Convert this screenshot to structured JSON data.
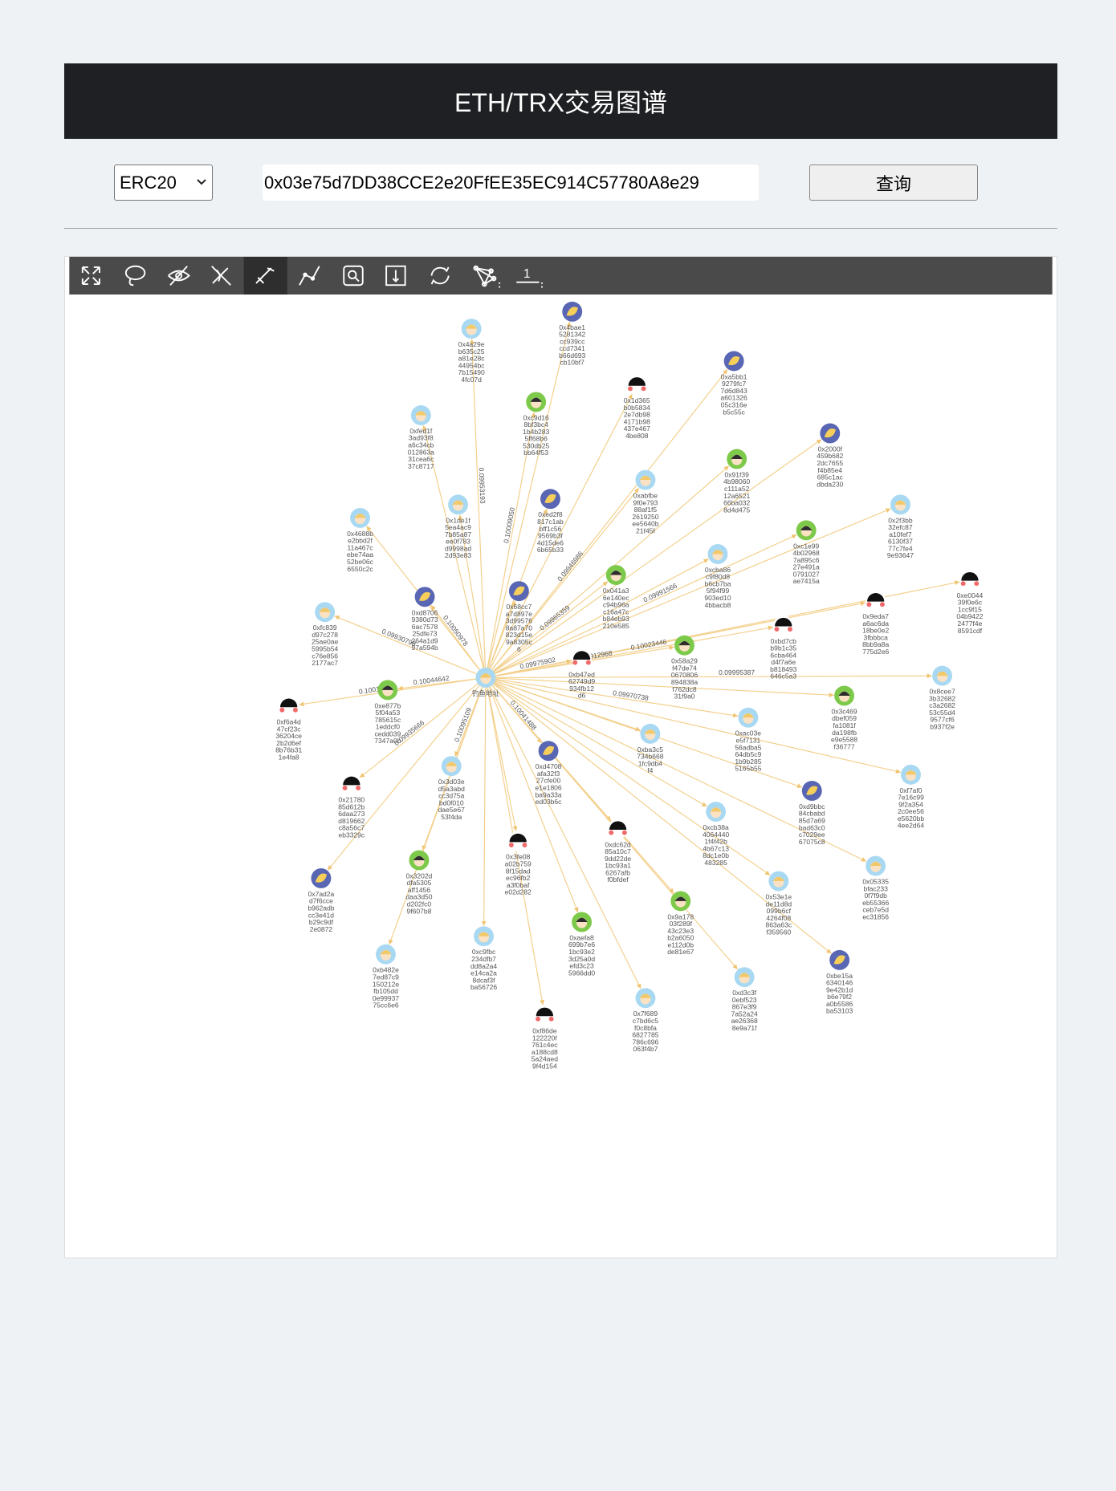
{
  "header": {
    "title": "ETH/TRX交易图谱"
  },
  "controls": {
    "select": "ERC20",
    "address": "0x03e75d7DD38CCE2e20FfEE35EC914C57780A8e29",
    "button": "查询"
  },
  "toolbar": {
    "page": "1"
  },
  "graph": {
    "center": "钓鱼地址",
    "nodes": [
      {
        "label": "0x4bae15281342cc939ccccd7341b66d693cb10bf7"
      },
      {
        "label": "0x4a29eb635c25a81e28c44954bc7b154904fc07d",
        "amount": "0.09953193"
      },
      {
        "label": "0x1d365b0b58342e7db984171b98437e4674be808"
      },
      {
        "label": "0xa5bb19279fc77d6d843a60132605c316eb5c55c"
      },
      {
        "label": "0xc9d168bf3bc41b4b2835ff68b6530db25bb64f53",
        "amount": "0.10009050"
      },
      {
        "label": "0xfed1f3ad93f8a6c34cb012863a31cea6c37c8717"
      },
      {
        "label": "0x2000f459b6822dc7655f4b85e4685c1acdbda230"
      },
      {
        "label": "0x91f394b98060c111a5212a652166ba0328d4d475"
      },
      {
        "label": "0xabfbe9f0e79388af1f52619250ee5640b21f45f",
        "amount": "0.09946986"
      },
      {
        "label": "0xed2f8817c1abbff1c569569b3f4d15de66b65b33"
      },
      {
        "label": "0x2f3bb32efc87a10fef76130f3777c7fe49e93647"
      },
      {
        "label": "0x1de1f5ea4ac97b85a87ee0f783d9998ad2d93e83"
      },
      {
        "label": "0x4688be2bbd2f11a467cebe74aa52be06c6550c2c"
      },
      {
        "label": "0xc1e994b029687a895c627e491a0791027ae7415a",
        "amount": "0.09991566"
      },
      {
        "label": "0xcba86c9f80d8b6cb7ba5f94f99903ed104bbacb8"
      },
      {
        "label": "0xe004439f0e6c1cc9f1504b94222477f4e8591cdf"
      },
      {
        "label": "0x041a36e140ecc94b96ac16a47cb84eb93210e585",
        "amount": "0.09965359"
      },
      {
        "label": "0xd87069380d736ac757825dfe73264a1d997a594b",
        "amount": "0.10050978"
      },
      {
        "label": "0x9eda7a6ac6da18be0e23fbbbca8bb9a8a775d2e6"
      },
      {
        "label": "0x68cc7a7d897e3d995768a87a70823d15e9a8305c6"
      },
      {
        "label": "0xfc839d97c27825ae0ae5995b54c76e8562177ac7",
        "amount": "0.09930798"
      },
      {
        "label": "0xbd7cbb9b1c356cba464d4f7a6eb818493646c5a3",
        "amount": "0.10023446"
      },
      {
        "label": "0x58a29f47de740670806894838af762dc831f9a0",
        "amount": "0.09912968"
      },
      {
        "label": "0xb47ed62749d9934fb12d6",
        "amount": "0.09975902"
      },
      {
        "label": "0x8cee73b32682c3a268253c55d49577cf6b937f2e",
        "amount": "0.09995387"
      },
      {
        "label": "0xe877b5f04a53785615c1eddcf0cedd0397347a0b",
        "amount": "0.10044642"
      },
      {
        "label": "0xf6a4d47cf23c36204ce2b2d6ef8b76b311e4fa8",
        "amount": "0.10014348"
      },
      {
        "label": "0x3c469dbef059fa1081fda198fbe9e5588f36777"
      },
      {
        "label": "0xac03ee5f713156adba564db5c91b9b2855165b55",
        "amount": "0.09970738"
      },
      {
        "label": "0xba3c5734b6681fc9db4f4"
      },
      {
        "label": "0xd4708afa32f327cfe00e1e1806ba9a33aed03b6c",
        "amount": "0.10041488"
      },
      {
        "label": "0xf7af07e16c999f2a3542c0ee56e5620bb4ee2d64"
      },
      {
        "label": "0x3d03ed5a3abdcc3d75abd0f010dae5e6753f4da",
        "amount": "0.10095109"
      },
      {
        "label": "0x2178085d612b6daa273d819662c8a56c7eb3329c",
        "amount": "0.09935666"
      },
      {
        "label": "0xd9bbc84cbabd85d7a69bad63c0c7029ee67075c8"
      },
      {
        "label": "0xcb38a40644401f4f42b4b67c138dc1e0b483285"
      },
      {
        "label": "0x3fe08a02b7598f15dadec96fb2a3f0bafe02d282"
      },
      {
        "label": "0xdc62d85a10c79dd22de1bc93a16267afbf0bfdef"
      },
      {
        "label": "0x7ad2ad7f6cceb962adbcc3e41db29c9df2e0872"
      },
      {
        "label": "0x3202ddfa5305aff1456daa3d50d202fc09f607b8"
      },
      {
        "label": "0x05335bfac2330f7f9dbeb55366ceb7e5dec31856"
      },
      {
        "label": "0x53e1ede11d8d099b6cf4264f08863a63cf359560"
      },
      {
        "label": "0xaefa8699b7e61bc93e23d25a0defd3c235966dd0"
      },
      {
        "label": "0x9a17803f289f43c23e3b2a6050e112d0bde81e67"
      },
      {
        "label": "0xc9fbc234dfb7dd8a2a4e14ca2a8dcaf3fba56726"
      },
      {
        "label": "0xb482e7ed87c9150212efb105dd0e9993775cc6e6"
      },
      {
        "label": "0xbe15a63401469e42b1db6e79f2a0b5586ba53103"
      },
      {
        "label": "0xd3c3f0ebf523867e3f97a52a24ae263688e9a71f"
      },
      {
        "label": "0x7f689c7bd6c5f0c8bfa6827785786c696063f4b7"
      },
      {
        "label": "0xf86de122220f761c4eca188cd85a24aed9f4d154"
      }
    ]
  }
}
